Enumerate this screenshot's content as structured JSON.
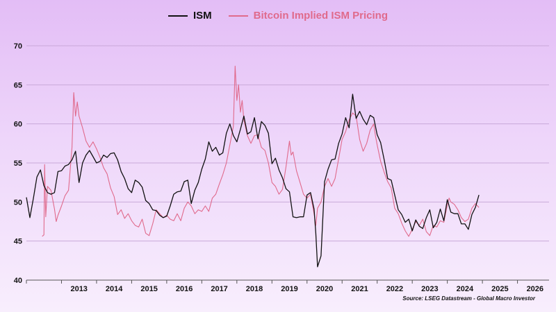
{
  "legend": {
    "ism_label": "ISM",
    "btc_label": "Bitcoin Implied ISM Pricing"
  },
  "source": "Source: LSEG Datastream - Global Macro Investor",
  "colors": {
    "ism": "#111111",
    "btc": "#e06a8c",
    "grid": "#c9a9d9"
  },
  "chart_data": {
    "type": "line",
    "title": "",
    "xlabel": "",
    "ylabel": "",
    "xlim": [
      2012.0,
      2026.9
    ],
    "ylim": [
      40,
      70
    ],
    "y_ticks": [
      40,
      45,
      50,
      55,
      60,
      65,
      70
    ],
    "x_ticks": [
      "2013",
      "2014",
      "2015",
      "2016",
      "2017",
      "2018",
      "2019",
      "2020",
      "2021",
      "2022",
      "2023",
      "2024",
      "2025",
      "2026"
    ],
    "grid": "horizontal",
    "legend_position": "top-center",
    "series": [
      {
        "name": "ISM",
        "color": "#111111",
        "points": [
          [
            2012.0,
            50.6
          ],
          [
            2012.1,
            48.0
          ],
          [
            2012.2,
            50.5
          ],
          [
            2012.3,
            53.2
          ],
          [
            2012.4,
            54.1
          ],
          [
            2012.5,
            52.1
          ],
          [
            2012.6,
            51.2
          ],
          [
            2012.7,
            51.0
          ],
          [
            2012.8,
            51.2
          ],
          [
            2012.9,
            53.9
          ],
          [
            2013.0,
            54.0
          ],
          [
            2013.1,
            54.6
          ],
          [
            2013.2,
            54.8
          ],
          [
            2013.3,
            55.4
          ],
          [
            2013.4,
            56.5
          ],
          [
            2013.5,
            52.5
          ],
          [
            2013.6,
            55.0
          ],
          [
            2013.7,
            56.0
          ],
          [
            2013.8,
            56.6
          ],
          [
            2013.9,
            55.8
          ],
          [
            2014.0,
            55.0
          ],
          [
            2014.1,
            55.2
          ],
          [
            2014.2,
            56.0
          ],
          [
            2014.3,
            55.7
          ],
          [
            2014.4,
            56.2
          ],
          [
            2014.5,
            56.3
          ],
          [
            2014.6,
            55.4
          ],
          [
            2014.7,
            53.9
          ],
          [
            2014.8,
            53.0
          ],
          [
            2014.9,
            51.7
          ],
          [
            2015.0,
            51.2
          ],
          [
            2015.1,
            52.8
          ],
          [
            2015.2,
            52.5
          ],
          [
            2015.3,
            51.9
          ],
          [
            2015.4,
            50.2
          ],
          [
            2015.5,
            49.8
          ],
          [
            2015.6,
            49.0
          ],
          [
            2015.7,
            48.9
          ],
          [
            2015.8,
            48.3
          ],
          [
            2015.9,
            48.0
          ],
          [
            2016.0,
            48.2
          ],
          [
            2016.1,
            49.5
          ],
          [
            2016.2,
            51.0
          ],
          [
            2016.3,
            51.3
          ],
          [
            2016.4,
            51.4
          ],
          [
            2016.5,
            52.6
          ],
          [
            2016.6,
            52.8
          ],
          [
            2016.7,
            49.8
          ],
          [
            2016.8,
            51.5
          ],
          [
            2016.9,
            52.5
          ],
          [
            2017.0,
            54.2
          ],
          [
            2017.1,
            55.5
          ],
          [
            2017.2,
            57.7
          ],
          [
            2017.3,
            56.5
          ],
          [
            2017.4,
            57.0
          ],
          [
            2017.5,
            56.0
          ],
          [
            2017.6,
            56.3
          ],
          [
            2017.7,
            58.8
          ],
          [
            2017.8,
            60.0
          ],
          [
            2017.9,
            58.5
          ],
          [
            2018.0,
            57.7
          ],
          [
            2018.1,
            59.3
          ],
          [
            2018.2,
            61.0
          ],
          [
            2018.3,
            58.7
          ],
          [
            2018.4,
            59.0
          ],
          [
            2018.5,
            60.8
          ],
          [
            2018.6,
            58.1
          ],
          [
            2018.7,
            60.3
          ],
          [
            2018.8,
            59.8
          ],
          [
            2018.9,
            58.8
          ],
          [
            2019.0,
            54.9
          ],
          [
            2019.1,
            55.6
          ],
          [
            2019.2,
            54.1
          ],
          [
            2019.3,
            53.1
          ],
          [
            2019.4,
            51.7
          ],
          [
            2019.5,
            51.3
          ],
          [
            2019.6,
            48.1
          ],
          [
            2019.7,
            48.0
          ],
          [
            2019.8,
            48.1
          ],
          [
            2019.9,
            48.1
          ],
          [
            2020.0,
            50.9
          ],
          [
            2020.1,
            51.2
          ],
          [
            2020.2,
            49.1
          ],
          [
            2020.25,
            46.0
          ],
          [
            2020.3,
            41.7
          ],
          [
            2020.4,
            43.1
          ],
          [
            2020.5,
            52.6
          ],
          [
            2020.6,
            54.2
          ],
          [
            2020.7,
            55.4
          ],
          [
            2020.8,
            55.5
          ],
          [
            2020.9,
            57.5
          ],
          [
            2021.0,
            58.7
          ],
          [
            2021.1,
            60.8
          ],
          [
            2021.2,
            59.5
          ],
          [
            2021.3,
            63.8
          ],
          [
            2021.4,
            60.7
          ],
          [
            2021.5,
            61.6
          ],
          [
            2021.6,
            60.6
          ],
          [
            2021.7,
            59.9
          ],
          [
            2021.8,
            61.1
          ],
          [
            2021.9,
            60.8
          ],
          [
            2022.0,
            58.6
          ],
          [
            2022.1,
            57.6
          ],
          [
            2022.2,
            55.4
          ],
          [
            2022.3,
            53.0
          ],
          [
            2022.4,
            52.8
          ],
          [
            2022.5,
            50.9
          ],
          [
            2022.6,
            49.0
          ],
          [
            2022.7,
            48.4
          ],
          [
            2022.8,
            47.4
          ],
          [
            2022.9,
            47.8
          ],
          [
            2023.0,
            46.3
          ],
          [
            2023.1,
            47.7
          ],
          [
            2023.2,
            46.9
          ],
          [
            2023.3,
            46.6
          ],
          [
            2023.4,
            48.0
          ],
          [
            2023.5,
            49.0
          ],
          [
            2023.6,
            46.7
          ],
          [
            2023.7,
            47.4
          ],
          [
            2023.8,
            49.1
          ],
          [
            2023.9,
            47.6
          ],
          [
            2024.0,
            50.3
          ],
          [
            2024.1,
            48.7
          ],
          [
            2024.2,
            48.5
          ],
          [
            2024.3,
            48.5
          ],
          [
            2024.4,
            47.2
          ],
          [
            2024.5,
            47.2
          ],
          [
            2024.6,
            46.5
          ],
          [
            2024.7,
            48.4
          ],
          [
            2024.8,
            49.3
          ],
          [
            2024.9,
            50.9
          ]
        ]
      },
      {
        "name": "Bitcoin Implied ISM Pricing",
        "color": "#e06a8c",
        "points": [
          [
            2012.45,
            45.6
          ],
          [
            2012.5,
            45.8
          ],
          [
            2012.52,
            54.8
          ],
          [
            2012.55,
            48.1
          ],
          [
            2012.6,
            52.0
          ],
          [
            2012.7,
            51.5
          ],
          [
            2012.8,
            49.1
          ],
          [
            2012.85,
            47.5
          ],
          [
            2012.9,
            48.3
          ],
          [
            2013.0,
            49.5
          ],
          [
            2013.1,
            50.8
          ],
          [
            2013.2,
            51.5
          ],
          [
            2013.3,
            57.0
          ],
          [
            2013.35,
            64.0
          ],
          [
            2013.4,
            61.0
          ],
          [
            2013.45,
            62.8
          ],
          [
            2013.5,
            61.0
          ],
          [
            2013.6,
            59.5
          ],
          [
            2013.7,
            57.8
          ],
          [
            2013.8,
            57.0
          ],
          [
            2013.9,
            57.7
          ],
          [
            2014.0,
            56.8
          ],
          [
            2014.1,
            55.7
          ],
          [
            2014.2,
            54.4
          ],
          [
            2014.3,
            53.6
          ],
          [
            2014.4,
            51.8
          ],
          [
            2014.5,
            50.7
          ],
          [
            2014.6,
            48.4
          ],
          [
            2014.7,
            49.0
          ],
          [
            2014.8,
            47.9
          ],
          [
            2014.9,
            48.5
          ],
          [
            2015.0,
            47.6
          ],
          [
            2015.1,
            47.0
          ],
          [
            2015.2,
            46.8
          ],
          [
            2015.3,
            47.8
          ],
          [
            2015.4,
            46.0
          ],
          [
            2015.5,
            45.7
          ],
          [
            2015.6,
            47.2
          ],
          [
            2015.7,
            49.0
          ],
          [
            2015.8,
            48.5
          ],
          [
            2015.9,
            48.0
          ],
          [
            2016.0,
            48.3
          ],
          [
            2016.1,
            47.8
          ],
          [
            2016.2,
            47.6
          ],
          [
            2016.3,
            48.5
          ],
          [
            2016.4,
            47.6
          ],
          [
            2016.5,
            49.2
          ],
          [
            2016.6,
            50.0
          ],
          [
            2016.7,
            49.5
          ],
          [
            2016.8,
            48.5
          ],
          [
            2016.9,
            49.0
          ],
          [
            2017.0,
            48.8
          ],
          [
            2017.1,
            49.5
          ],
          [
            2017.2,
            48.8
          ],
          [
            2017.3,
            50.5
          ],
          [
            2017.4,
            51.0
          ],
          [
            2017.5,
            52.3
          ],
          [
            2017.6,
            53.5
          ],
          [
            2017.7,
            55.0
          ],
          [
            2017.8,
            57.3
          ],
          [
            2017.9,
            59.7
          ],
          [
            2017.95,
            67.4
          ],
          [
            2018.0,
            63.0
          ],
          [
            2018.05,
            65.0
          ],
          [
            2018.1,
            61.5
          ],
          [
            2018.15,
            63.0
          ],
          [
            2018.2,
            60.5
          ],
          [
            2018.3,
            58.5
          ],
          [
            2018.4,
            57.5
          ],
          [
            2018.5,
            58.5
          ],
          [
            2018.6,
            58.6
          ],
          [
            2018.7,
            57.0
          ],
          [
            2018.8,
            56.6
          ],
          [
            2018.9,
            55.0
          ],
          [
            2019.0,
            52.5
          ],
          [
            2019.1,
            52.0
          ],
          [
            2019.2,
            51.0
          ],
          [
            2019.3,
            51.6
          ],
          [
            2019.4,
            54.5
          ],
          [
            2019.5,
            57.8
          ],
          [
            2019.55,
            56.0
          ],
          [
            2019.6,
            56.4
          ],
          [
            2019.7,
            54.0
          ],
          [
            2019.8,
            52.5
          ],
          [
            2019.9,
            51.0
          ],
          [
            2020.0,
            50.5
          ],
          [
            2020.1,
            51.0
          ],
          [
            2020.2,
            48.5
          ],
          [
            2020.25,
            47.0
          ],
          [
            2020.3,
            49.2
          ],
          [
            2020.4,
            50.0
          ],
          [
            2020.5,
            52.0
          ],
          [
            2020.6,
            53.0
          ],
          [
            2020.7,
            52.0
          ],
          [
            2020.8,
            53.0
          ],
          [
            2020.9,
            55.5
          ],
          [
            2021.0,
            58.0
          ],
          [
            2021.1,
            59.0
          ],
          [
            2021.2,
            60.5
          ],
          [
            2021.3,
            61.4
          ],
          [
            2021.4,
            61.0
          ],
          [
            2021.5,
            58.0
          ],
          [
            2021.6,
            56.5
          ],
          [
            2021.7,
            57.5
          ],
          [
            2021.8,
            59.2
          ],
          [
            2021.9,
            60.0
          ],
          [
            2021.95,
            58.5
          ],
          [
            2022.0,
            57.3
          ],
          [
            2022.1,
            55.2
          ],
          [
            2022.2,
            53.8
          ],
          [
            2022.3,
            52.6
          ],
          [
            2022.4,
            51.8
          ],
          [
            2022.5,
            49.2
          ],
          [
            2022.6,
            48.5
          ],
          [
            2022.7,
            47.3
          ],
          [
            2022.8,
            46.3
          ],
          [
            2022.9,
            45.6
          ],
          [
            2023.0,
            46.5
          ],
          [
            2023.1,
            47.5
          ],
          [
            2023.2,
            47.0
          ],
          [
            2023.3,
            47.8
          ],
          [
            2023.4,
            46.2
          ],
          [
            2023.5,
            45.7
          ],
          [
            2023.6,
            47.0
          ],
          [
            2023.7,
            46.8
          ],
          [
            2023.8,
            47.6
          ],
          [
            2023.9,
            47.4
          ],
          [
            2024.0,
            49.6
          ],
          [
            2024.05,
            50.5
          ],
          [
            2024.1,
            50.0
          ],
          [
            2024.2,
            49.7
          ],
          [
            2024.3,
            49.0
          ],
          [
            2024.4,
            48.0
          ],
          [
            2024.5,
            47.5
          ],
          [
            2024.6,
            47.8
          ],
          [
            2024.7,
            49.2
          ],
          [
            2024.8,
            49.8
          ],
          [
            2024.9,
            49.3
          ]
        ]
      }
    ]
  }
}
